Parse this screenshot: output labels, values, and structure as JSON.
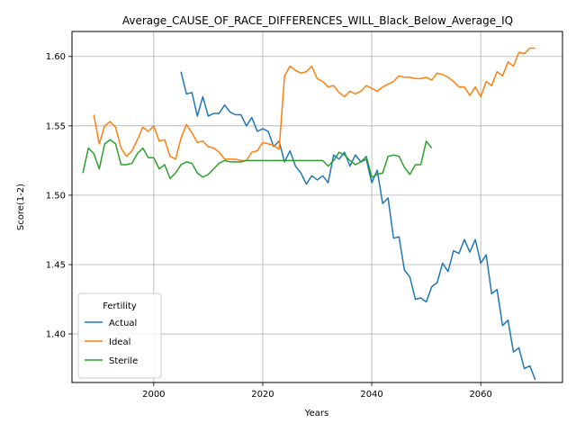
{
  "chart_data": {
    "type": "line",
    "title": "Average_CAUSE_OF_RACE_DIFFERENCES_WILL_Black_Below_Average_IQ",
    "xlabel": "Years",
    "ylabel": "Score(1-2)",
    "xlim": [
      1985,
      2075
    ],
    "ylim": [
      1.365,
      1.618
    ],
    "xticks": [
      2000,
      2020,
      2040,
      2060
    ],
    "yticks": [
      1.4,
      1.45,
      1.5,
      1.55,
      1.6
    ],
    "xtick_labels": [
      "2000",
      "2020",
      "2040",
      "2060"
    ],
    "ytick_labels": [
      "1.40",
      "1.45",
      "1.50",
      "1.55",
      "1.60"
    ],
    "grid": true,
    "legend": {
      "title": "Fertility",
      "placement": "lower-left"
    },
    "series": [
      {
        "name": "Actual",
        "color": "#1f77b4",
        "x": [
          2005,
          2006,
          2007,
          2008,
          2009,
          2010,
          2011,
          2012,
          2013,
          2014,
          2015,
          2016,
          2017,
          2018,
          2019,
          2020,
          2021,
          2022,
          2023,
          2024,
          2025,
          2026,
          2027,
          2028,
          2029,
          2030,
          2031,
          2032,
          2033,
          2034,
          2035,
          2036,
          2037,
          2038,
          2039,
          2040,
          2041,
          2042,
          2043,
          2044,
          2045,
          2046,
          2047,
          2048,
          2049,
          2050,
          2051,
          2052,
          2053,
          2054,
          2055,
          2056,
          2057,
          2058,
          2059,
          2060,
          2061,
          2062,
          2063,
          2064,
          2065,
          2066,
          2067,
          2068,
          2069,
          2070
        ],
        "values": [
          1.589,
          1.573,
          1.574,
          1.557,
          1.571,
          1.557,
          1.559,
          1.559,
          1.565,
          1.56,
          1.558,
          1.558,
          1.55,
          1.556,
          1.546,
          1.548,
          1.546,
          1.535,
          1.539,
          1.524,
          1.532,
          1.521,
          1.516,
          1.508,
          1.514,
          1.511,
          1.514,
          1.509,
          1.529,
          1.526,
          1.531,
          1.521,
          1.529,
          1.524,
          1.526,
          1.509,
          1.518,
          1.494,
          1.498,
          1.469,
          1.47,
          1.446,
          1.441,
          1.425,
          1.426,
          1.423,
          1.434,
          1.437,
          1.451,
          1.445,
          1.46,
          1.458,
          1.468,
          1.459,
          1.468,
          1.451,
          1.457,
          1.429,
          1.432,
          1.406,
          1.41,
          1.387,
          1.39,
          1.375,
          1.377,
          1.367
        ]
      },
      {
        "name": "Ideal",
        "color": "#ff7f0e",
        "x": [
          1989,
          1990,
          1991,
          1992,
          1993,
          1994,
          1995,
          1996,
          1997,
          1998,
          1999,
          2000,
          2001,
          2002,
          2003,
          2004,
          2005,
          2006,
          2007,
          2008,
          2009,
          2010,
          2011,
          2012,
          2013,
          2014,
          2015,
          2016,
          2017,
          2018,
          2019,
          2020,
          2021,
          2022,
          2023,
          2024,
          2025,
          2026,
          2027,
          2028,
          2029,
          2030,
          2031,
          2032,
          2033,
          2034,
          2035,
          2036,
          2037,
          2038,
          2039,
          2040,
          2041,
          2042,
          2043,
          2044,
          2045,
          2046,
          2047,
          2048,
          2049,
          2050,
          2051,
          2052,
          2053,
          2054,
          2055,
          2056,
          2057,
          2058,
          2059,
          2060,
          2061,
          2062,
          2063,
          2064,
          2065,
          2066,
          2067,
          2068,
          2069,
          2070
        ],
        "values": [
          1.558,
          1.537,
          1.55,
          1.553,
          1.549,
          1.534,
          1.528,
          1.532,
          1.54,
          1.549,
          1.546,
          1.55,
          1.539,
          1.54,
          1.528,
          1.526,
          1.541,
          1.551,
          1.545,
          1.538,
          1.539,
          1.535,
          1.534,
          1.531,
          1.526,
          1.526,
          1.526,
          1.525,
          1.525,
          1.531,
          1.532,
          1.538,
          1.537,
          1.536,
          1.533,
          1.586,
          1.593,
          1.59,
          1.588,
          1.589,
          1.593,
          1.584,
          1.582,
          1.578,
          1.579,
          1.574,
          1.571,
          1.575,
          1.573,
          1.575,
          1.579,
          1.577,
          1.575,
          1.578,
          1.58,
          1.582,
          1.586,
          1.585,
          1.585,
          1.584,
          1.584,
          1.585,
          1.583,
          1.588,
          1.587,
          1.585,
          1.582,
          1.578,
          1.578,
          1.572,
          1.578,
          1.571,
          1.582,
          1.579,
          1.589,
          1.586,
          1.596,
          1.593,
          1.603,
          1.602,
          1.606,
          1.606
        ]
      },
      {
        "name": "Sterile",
        "color": "#2ca02c",
        "x": [
          1987,
          1988,
          1989,
          1990,
          1991,
          1992,
          1993,
          1994,
          1995,
          1996,
          1997,
          1998,
          1999,
          2000,
          2001,
          2002,
          2003,
          2004,
          2005,
          2006,
          2007,
          2008,
          2009,
          2010,
          2011,
          2012,
          2013,
          2014,
          2015,
          2016,
          2017,
          2018,
          2019,
          2020,
          2021,
          2022,
          2023,
          2024,
          2025,
          2026,
          2027,
          2028,
          2029,
          2030,
          2031,
          2032,
          2033,
          2034,
          2035,
          2036,
          2037,
          2038,
          2039,
          2040,
          2041,
          2042,
          2043,
          2044,
          2045,
          2046,
          2047,
          2048,
          2049,
          2050,
          2051
        ],
        "values": [
          1.516,
          1.534,
          1.53,
          1.519,
          1.537,
          1.54,
          1.537,
          1.522,
          1.522,
          1.523,
          1.53,
          1.534,
          1.527,
          1.527,
          1.519,
          1.522,
          1.512,
          1.516,
          1.522,
          1.524,
          1.523,
          1.516,
          1.513,
          1.515,
          1.519,
          1.523,
          1.525,
          1.524,
          1.524,
          1.524,
          1.525,
          1.525,
          1.525,
          1.525,
          1.525,
          1.525,
          1.525,
          1.525,
          1.525,
          1.525,
          1.525,
          1.525,
          1.525,
          1.525,
          1.525,
          1.521,
          1.525,
          1.531,
          1.529,
          1.525,
          1.522,
          1.524,
          1.528,
          1.513,
          1.515,
          1.516,
          1.528,
          1.529,
          1.528,
          1.52,
          1.515,
          1.522,
          1.522,
          1.539,
          1.534
        ]
      }
    ]
  }
}
